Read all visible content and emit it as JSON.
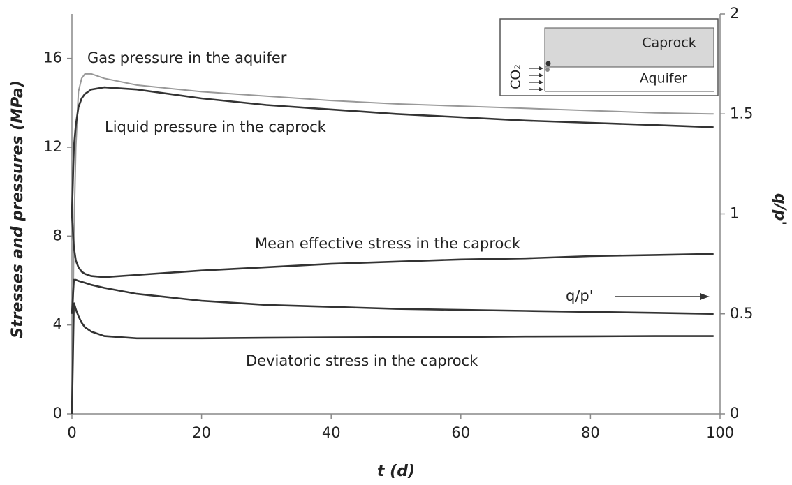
{
  "chart_data": {
    "type": "line",
    "x_label": "t (d)",
    "y_label": "Stresses and pressures  (MPa)",
    "y2_label": "q/p'",
    "x": [
      0,
      0.3,
      0.6,
      1,
      1.5,
      2,
      3,
      5,
      10,
      20,
      30,
      40,
      50,
      60,
      70,
      80,
      90,
      99
    ],
    "xlim": [
      0,
      100
    ],
    "xticks": [
      0,
      20,
      40,
      60,
      80,
      100
    ],
    "ylim": [
      0,
      18
    ],
    "yticks": [
      0,
      4,
      8,
      12,
      16
    ],
    "y2lim": [
      0,
      2
    ],
    "y2ticks": [
      0,
      0.5,
      1,
      1.5,
      2
    ],
    "series": [
      {
        "name": "Gas pressure in the aquifer",
        "color": "#999999",
        "values": [
          0,
          8,
          12,
          14.5,
          15.1,
          15.3,
          15.3,
          15.1,
          14.8,
          14.5,
          14.3,
          14.1,
          13.95,
          13.85,
          13.75,
          13.65,
          13.55,
          13.5
        ]
      },
      {
        "name": "Liquid pressure in the caprock",
        "color": "#333333",
        "values": [
          9,
          12,
          13,
          13.8,
          14.2,
          14.4,
          14.6,
          14.7,
          14.6,
          14.2,
          13.9,
          13.7,
          13.5,
          13.35,
          13.2,
          13.1,
          13.0,
          12.9
        ]
      },
      {
        "name": "Mean effective stress in the caprock",
        "color": "#333333",
        "values": [
          9,
          7.5,
          6.9,
          6.6,
          6.4,
          6.3,
          6.2,
          6.15,
          6.25,
          6.45,
          6.6,
          6.75,
          6.85,
          6.95,
          7.0,
          7.1,
          7.15,
          7.2
        ]
      },
      {
        "name": "q/p'",
        "color": "#333333",
        "axis": "y2",
        "values": [
          0.5,
          0.67,
          0.67,
          0.665,
          0.66,
          0.655,
          0.645,
          0.63,
          0.6,
          0.565,
          0.545,
          0.535,
          0.525,
          0.52,
          0.515,
          0.51,
          0.505,
          0.5
        ]
      },
      {
        "name": "Deviatoric stress in the caprock",
        "color": "#333333",
        "values": [
          0,
          5,
          4.7,
          4.4,
          4.1,
          3.9,
          3.7,
          3.5,
          3.4,
          3.4,
          3.42,
          3.44,
          3.45,
          3.46,
          3.48,
          3.49,
          3.5,
          3.5
        ]
      }
    ],
    "inset": {
      "caprock": "Caprock",
      "aquifer": "Aquifer",
      "gas": "CO₂"
    }
  }
}
